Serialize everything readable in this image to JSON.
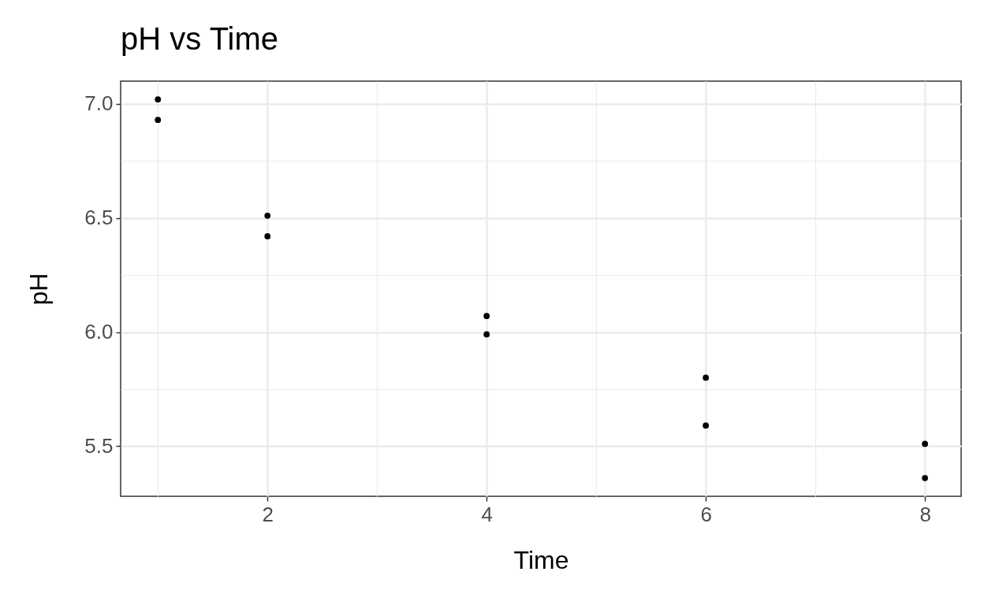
{
  "chart_data": {
    "type": "scatter",
    "title": "pH vs Time",
    "xlabel": "Time",
    "ylabel": "pH",
    "x": [
      1,
      1,
      2,
      2,
      4,
      4,
      6,
      6,
      8,
      8
    ],
    "series": [
      {
        "color": "#000000",
        "values": [
          7.02,
          6.93,
          6.51,
          6.42,
          6.07,
          5.99,
          5.8,
          5.59,
          5.51,
          5.36
        ]
      }
    ],
    "xlim": [
      0.66,
      8.33
    ],
    "ylim": [
      5.28,
      7.1
    ],
    "xticks": [
      {
        "value": 1,
        "label": null
      },
      2,
      {
        "value": 3,
        "label": null
      },
      4,
      {
        "value": 5,
        "label": null
      },
      6,
      {
        "value": 7,
        "label": null
      },
      8
    ],
    "yticks": [
      {
        "value": 5.5,
        "label": "5.5"
      },
      {
        "value": 5.75,
        "label": null
      },
      {
        "value": 6,
        "label": "6.0"
      },
      {
        "value": 6.25,
        "label": null
      },
      {
        "value": 6.5,
        "label": "6.5"
      },
      {
        "value": 6.75,
        "label": null
      },
      {
        "value": 7,
        "label": "7.0"
      }
    ],
    "grid": true
  }
}
